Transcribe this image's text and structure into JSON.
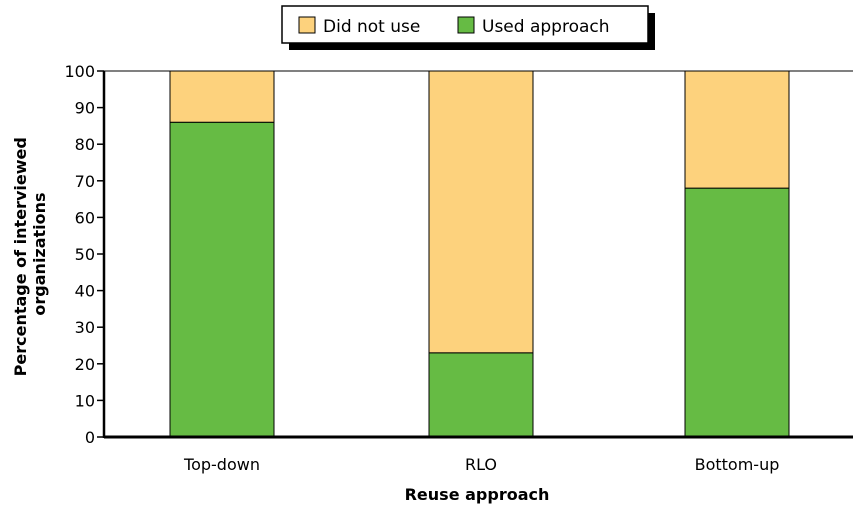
{
  "chart_data": {
    "type": "bar",
    "stacked": true,
    "categories": [
      "Top-down",
      "RLO",
      "Bottom-up"
    ],
    "series": [
      {
        "name": "Used approach",
        "values": [
          86,
          23,
          68
        ],
        "color": "#66bb44"
      },
      {
        "name": "Did not use",
        "values": [
          14,
          77,
          32
        ],
        "color": "#fdd27d"
      }
    ],
    "legend_order": [
      "Did not use",
      "Used approach"
    ],
    "legend_position": "top-center",
    "xlabel": "Reuse approach",
    "ylabel": [
      "Percentage of interviewed",
      "organizations"
    ],
    "ylim": [
      0,
      100
    ],
    "yticks": [
      0,
      10,
      20,
      30,
      40,
      50,
      60,
      70,
      80,
      90,
      100
    ],
    "grid": false
  }
}
